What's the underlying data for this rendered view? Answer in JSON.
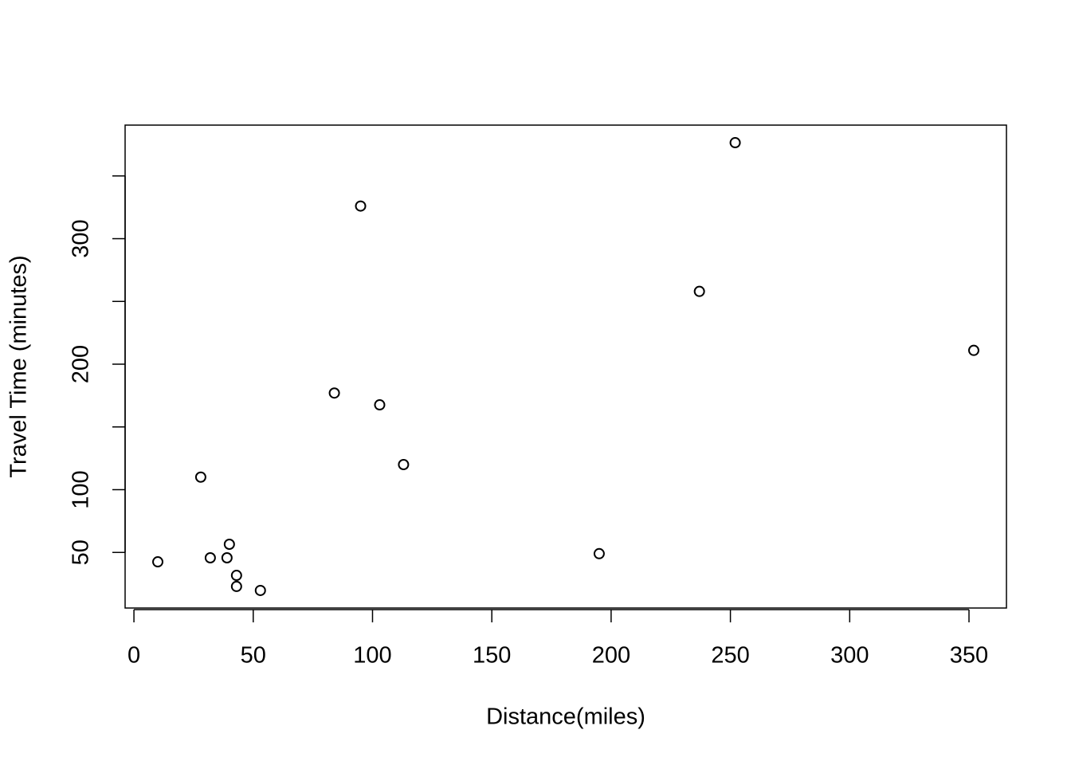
{
  "chart_data": {
    "type": "scatter",
    "x_label": "Distance(miles)",
    "y_label": "Travel Time (minutes)",
    "x": [
      10,
      28,
      32,
      39,
      40,
      43,
      43,
      53,
      84,
      95,
      103,
      113,
      195,
      237,
      252,
      352
    ],
    "values": [
      42.5,
      110,
      45.7,
      45.7,
      56.5,
      31.7,
      22.9,
      19.7,
      177,
      326,
      167.6,
      120,
      49,
      258,
      376.5,
      211
    ],
    "color": "#000000",
    "xlim": [
      -3.7,
      365.7
    ],
    "ylim": [
      5.7,
      390.5
    ],
    "xticks": [
      0,
      50,
      100,
      150,
      200,
      250,
      300,
      350
    ],
    "yticks": [
      50,
      100,
      200,
      300
    ],
    "yminor_ticks": [
      150,
      250,
      350
    ],
    "grid": false
  }
}
